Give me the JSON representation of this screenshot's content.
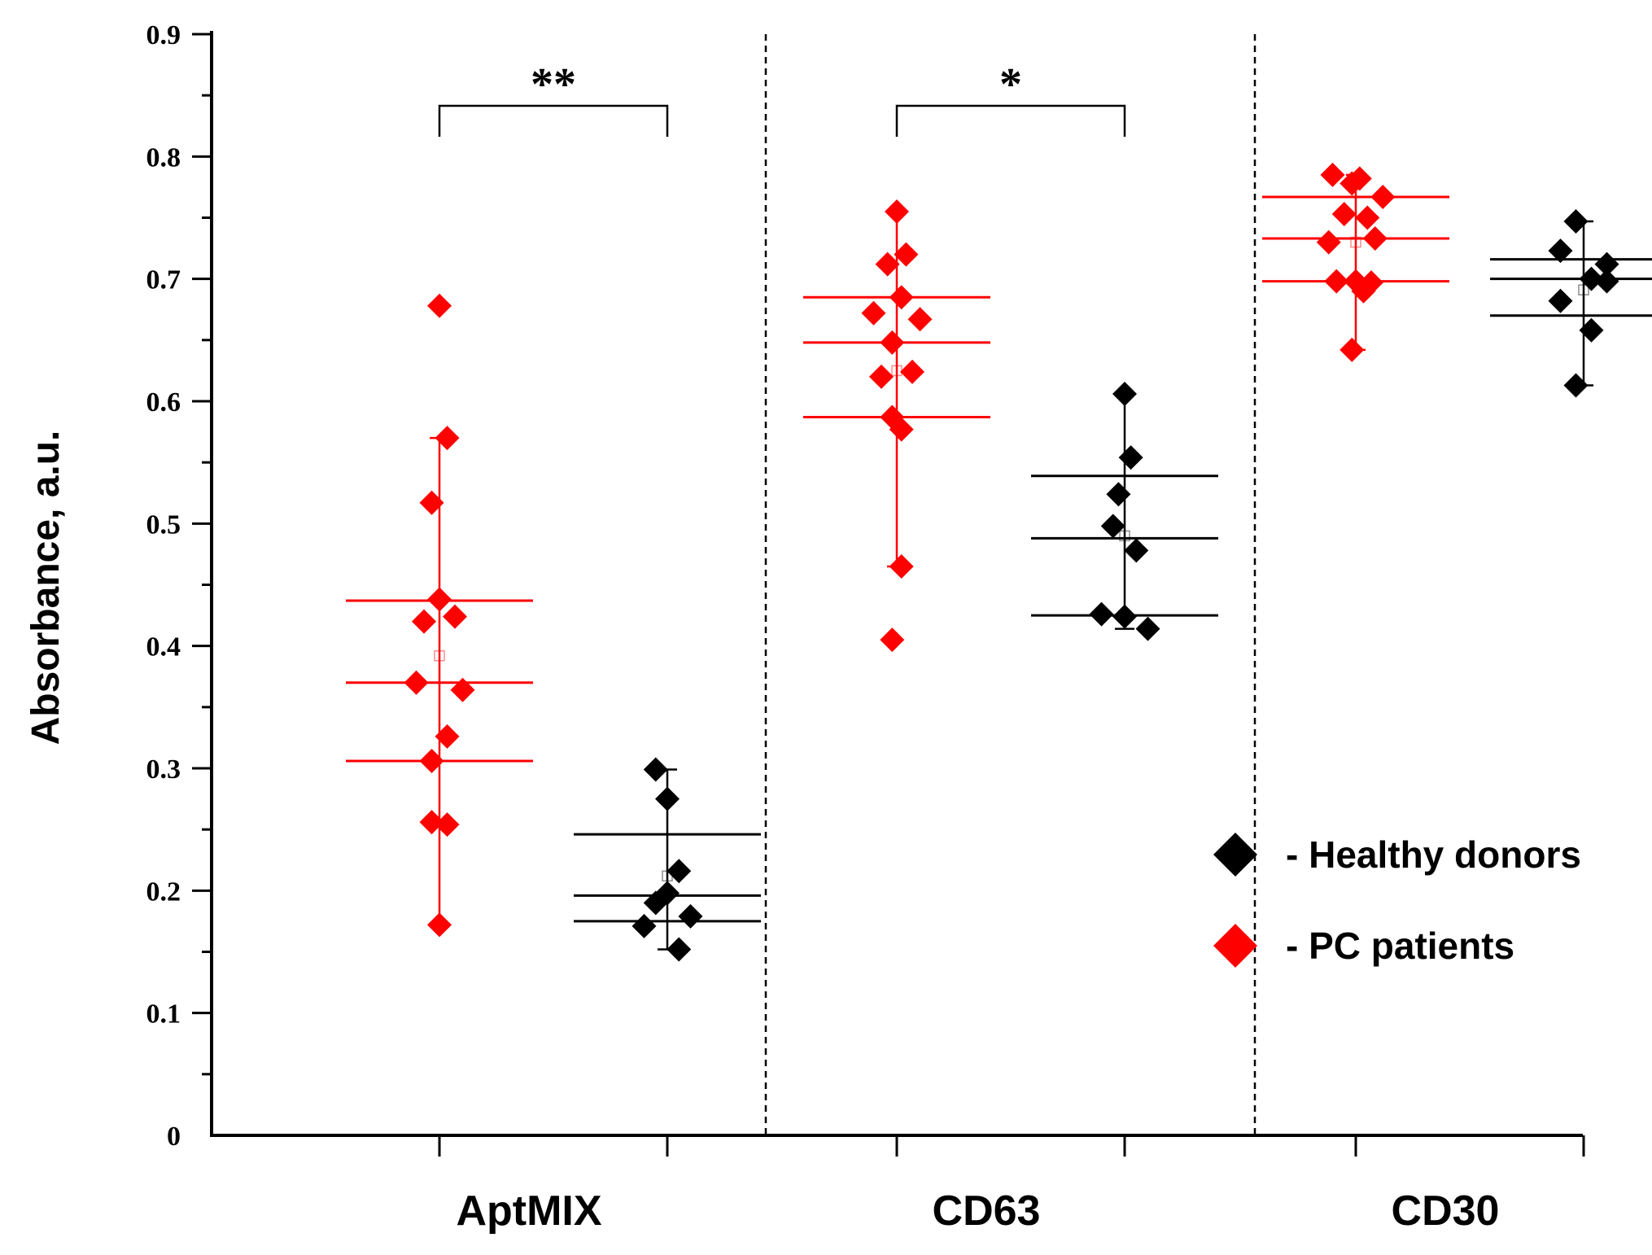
{
  "chart_data": {
    "type": "scatter",
    "title": "",
    "xlabel": "",
    "ylabel": "Absorbance,  a.u.",
    "ylim": [
      0,
      0.9
    ],
    "y_ticks": [
      "0",
      "0.1",
      "0.2",
      "0.3",
      "0.4",
      "0.5",
      "0.6",
      "0.7",
      "0.8",
      "0.9"
    ],
    "categories": [
      "AptMIX",
      "CD63",
      "CD30"
    ],
    "colors": {
      "pc": "#ff0000",
      "healthy": "#000000"
    },
    "legend": [
      {
        "name": "- Healthy donors",
        "color": "#000000"
      },
      {
        "name": "- PC patients",
        "color": "#ff0000"
      }
    ],
    "significance": [
      {
        "category": "AptMIX",
        "label": "**"
      },
      {
        "category": "CD63",
        "label": "*"
      }
    ],
    "groups": [
      {
        "category": "AptMIX",
        "series": "PC patients",
        "points": [
          [
            0,
            0.678
          ],
          [
            0.1,
            0.57
          ],
          [
            -0.1,
            0.517
          ],
          [
            0,
            0.438
          ],
          [
            -0.2,
            0.42
          ],
          [
            0.2,
            0.424
          ],
          [
            -0.3,
            0.37
          ],
          [
            0.3,
            0.364
          ],
          [
            0.1,
            0.326
          ],
          [
            -0.1,
            0.306
          ],
          [
            -0.1,
            0.256
          ],
          [
            0.1,
            0.254
          ],
          [
            0,
            0.172
          ]
        ],
        "q3": 0.437,
        "median": 0.37,
        "q1": 0.306,
        "whisker_high": 0.57,
        "whisker_low": 0.172,
        "mean": 0.392
      },
      {
        "category": "AptMIX",
        "series": "Healthy donors",
        "points": [
          [
            -0.15,
            0.299
          ],
          [
            0,
            0.275
          ],
          [
            0.15,
            0.216
          ],
          [
            -0.15,
            0.19
          ],
          [
            0,
            0.198
          ],
          [
            -0.3,
            0.171
          ],
          [
            0.3,
            0.179
          ],
          [
            0.15,
            0.152
          ]
        ],
        "q3": 0.246,
        "median": 0.196,
        "q1": 0.175,
        "whisker_high": 0.299,
        "whisker_low": 0.152,
        "mean": 0.212
      },
      {
        "category": "CD63",
        "series": "PC patients",
        "points": [
          [
            0,
            0.755
          ],
          [
            -0.12,
            0.712
          ],
          [
            0.12,
            0.72
          ],
          [
            0.06,
            0.685
          ],
          [
            -0.3,
            0.672
          ],
          [
            0.3,
            0.667
          ],
          [
            -0.06,
            0.648
          ],
          [
            -0.2,
            0.62
          ],
          [
            0.2,
            0.624
          ],
          [
            -0.06,
            0.587
          ],
          [
            0.06,
            0.577
          ],
          [
            0.06,
            0.465
          ],
          [
            -0.06,
            0.405
          ]
        ],
        "q3": 0.685,
        "median": 0.648,
        "q1": 0.587,
        "whisker_high": 0.755,
        "whisker_low": 0.465,
        "mean": 0.625
      },
      {
        "category": "CD63",
        "series": "Healthy donors",
        "points": [
          [
            0,
            0.606
          ],
          [
            0.08,
            0.554
          ],
          [
            -0.08,
            0.524
          ],
          [
            -0.15,
            0.498
          ],
          [
            0.15,
            0.478
          ],
          [
            -0.3,
            0.426
          ],
          [
            0,
            0.424
          ],
          [
            0.3,
            0.414
          ]
        ],
        "q3": 0.539,
        "median": 0.488,
        "q1": 0.425,
        "whisker_high": 0.606,
        "whisker_low": 0.414,
        "mean": 0.49
      },
      {
        "category": "CD30",
        "series": "PC patients",
        "points": [
          [
            -0.3,
            0.785
          ],
          [
            -0.05,
            0.778
          ],
          [
            0.05,
            0.782
          ],
          [
            0.35,
            0.767
          ],
          [
            -0.15,
            0.753
          ],
          [
            0.15,
            0.75
          ],
          [
            -0.35,
            0.73
          ],
          [
            0.25,
            0.733
          ],
          [
            -0.25,
            0.698
          ],
          [
            0,
            0.698
          ],
          [
            0.1,
            0.69
          ],
          [
            0.2,
            0.697
          ],
          [
            -0.05,
            0.642
          ]
        ],
        "q3": 0.767,
        "median": 0.733,
        "q1": 0.698,
        "whisker_high": 0.785,
        "whisker_low": 0.642,
        "mean": 0.73
      },
      {
        "category": "CD30",
        "series": "Healthy donors",
        "points": [
          [
            -0.3,
            0.723
          ],
          [
            -0.1,
            0.747
          ],
          [
            0.3,
            0.712
          ],
          [
            -0.3,
            0.682
          ],
          [
            0.1,
            0.7
          ],
          [
            0.3,
            0.698
          ],
          [
            0.1,
            0.658
          ],
          [
            -0.1,
            0.613
          ]
        ],
        "q3": 0.716,
        "median": 0.7,
        "q1": 0.67,
        "whisker_high": 0.747,
        "whisker_low": 0.613,
        "mean": 0.691
      }
    ]
  }
}
